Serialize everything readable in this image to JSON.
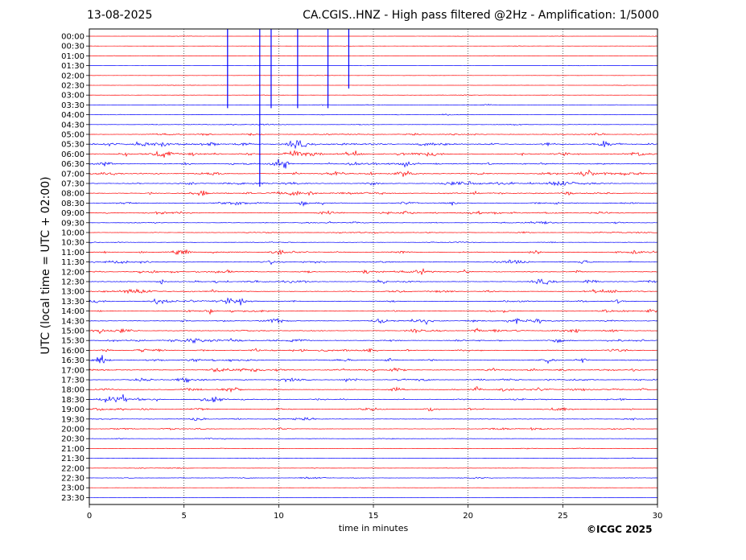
{
  "header": {
    "date": "13-08-2025",
    "title": "CA.CGIS..HNZ - High pass filtered @2Hz - Amplification: 1/5000"
  },
  "footer": {
    "copyright": "©ICGC 2025"
  },
  "chart_data": {
    "type": "line",
    "title": "CA.CGIS..HNZ - High pass filtered @2Hz - Amplification: 1/5000",
    "xlabel": "time in minutes",
    "ylabel": "UTC (local time = UTC + 02:00)",
    "xlim": [
      0,
      30
    ],
    "x_ticks": [
      0,
      5,
      10,
      15,
      20,
      25,
      30
    ],
    "vertical_gridlines_dotted": [
      5,
      10,
      15,
      20,
      25
    ],
    "trace_colors": [
      "#0000ff",
      "#ff0000"
    ],
    "rows": [
      "00:00",
      "00:30",
      "01:00",
      "01:30",
      "02:00",
      "02:30",
      "03:00",
      "03:30",
      "04:00",
      "04:30",
      "05:00",
      "05:30",
      "06:00",
      "06:30",
      "07:00",
      "07:30",
      "08:00",
      "08:30",
      "09:00",
      "09:30",
      "10:00",
      "10:30",
      "11:00",
      "11:30",
      "12:00",
      "12:30",
      "13:00",
      "13:30",
      "14:00",
      "14:30",
      "15:00",
      "15:30",
      "16:00",
      "16:30",
      "17:00",
      "17:30",
      "18:00",
      "18:30",
      "19:00",
      "19:30",
      "20:00",
      "20:30",
      "21:00",
      "21:30",
      "22:00",
      "22:30",
      "23:00",
      "23:30"
    ],
    "colors_by_row": [
      "red",
      "red",
      "red",
      "blue",
      "red",
      "red",
      "red",
      "blue",
      "blue",
      "blue",
      "red",
      "blue",
      "red",
      "blue",
      "red",
      "blue",
      "red",
      "blue",
      "red",
      "blue",
      "red",
      "blue",
      "red",
      "blue",
      "red",
      "blue",
      "red",
      "blue",
      "red",
      "blue",
      "red",
      "blue",
      "red",
      "blue",
      "red",
      "blue",
      "red",
      "blue",
      "red",
      "blue",
      "red",
      "blue",
      "red",
      "blue",
      "red",
      "blue",
      "red",
      "blue"
    ],
    "activity_level": [
      0.3,
      0.3,
      0.3,
      0.2,
      0.3,
      0.4,
      0.4,
      0.5,
      0.5,
      0.6,
      1.0,
      1.6,
      1.6,
      1.4,
      1.5,
      1.4,
      1.3,
      1.2,
      1.1,
      0.9,
      0.8,
      0.7,
      1.2,
      1.2,
      1.2,
      1.2,
      1.1,
      1.2,
      1.2,
      1.3,
      1.2,
      1.3,
      1.3,
      1.2,
      1.2,
      1.2,
      1.2,
      1.2,
      1.1,
      1.0,
      0.9,
      0.7,
      0.6,
      0.6,
      0.5,
      0.7,
      0.3,
      0.2
    ],
    "large_spikes": [
      {
        "row": "01:00",
        "minute": 7.3,
        "to_row": "03:30"
      },
      {
        "row": "01:00",
        "minute": 9.0,
        "to_row": "07:30"
      },
      {
        "row": "01:00",
        "minute": 9.6,
        "to_row": "03:30"
      },
      {
        "row": "01:00",
        "minute": 11.0,
        "to_row": "03:30"
      },
      {
        "row": "01:00",
        "minute": 12.6,
        "to_row": "03:30"
      },
      {
        "row": "01:30",
        "minute": 13.7,
        "to_row": "02:30"
      }
    ]
  }
}
